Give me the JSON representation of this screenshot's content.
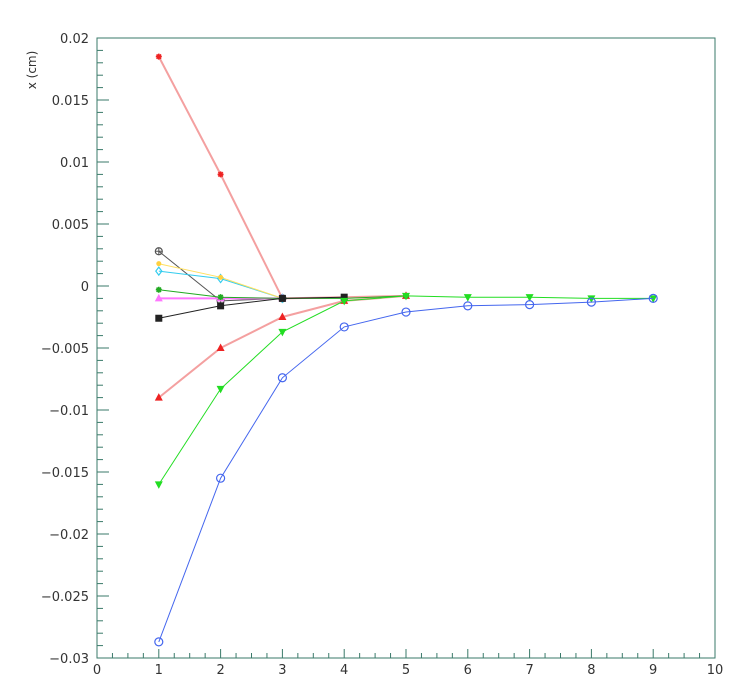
{
  "chart_data": {
    "type": "line",
    "title": "",
    "xlabel": "",
    "ylabel": "x (cm)",
    "xlim": [
      0,
      10
    ],
    "ylim": [
      -0.03,
      0.02
    ],
    "grid": false,
    "legend": "none",
    "x_ticks": [
      0,
      1,
      2,
      3,
      4,
      5,
      6,
      7,
      8,
      9,
      10
    ],
    "x_tick_labels": [
      "0",
      "1",
      "2",
      "3",
      "4",
      "5",
      "6",
      "7",
      "8",
      "9",
      "10"
    ],
    "y_ticks": [
      -0.03,
      -0.025,
      -0.02,
      -0.015,
      -0.01,
      -0.005,
      0,
      0.005,
      0.01,
      0.015,
      0.02
    ],
    "y_tick_labels": [
      "−0.03",
      "−0.025",
      "−0.02",
      "−0.015",
      "−0.01",
      "−0.005",
      "0",
      "0.005",
      "0.01",
      "0.015",
      "0.02"
    ],
    "series": [
      {
        "color": "#f4a0a0",
        "lineWidth": 2,
        "marker": "star",
        "markerColor": "#ee2222",
        "x": [
          1,
          2,
          3,
          4,
          5
        ],
        "y": [
          0.0185,
          0.009,
          -0.001,
          -0.0009,
          -0.0008
        ]
      },
      {
        "color": "#f4a0a0",
        "lineWidth": 2,
        "marker": "triangle-up",
        "markerColor": "#ee2222",
        "x": [
          1,
          2,
          3,
          4,
          5
        ],
        "y": [
          -0.009,
          -0.005,
          -0.0025,
          -0.0012,
          -0.0008
        ]
      },
      {
        "color": "#555555",
        "lineWidth": 1,
        "marker": "open-cross",
        "markerColor": "#555555",
        "x": [
          1,
          2,
          3
        ],
        "y": [
          0.0028,
          -0.0012,
          -0.001
        ]
      },
      {
        "color": "#33ccee",
        "lineWidth": 1,
        "marker": "open-diamond",
        "markerColor": "#33ccee",
        "x": [
          1,
          2,
          3
        ],
        "y": [
          0.0012,
          0.0006,
          -0.001
        ]
      },
      {
        "color": "#ffe060",
        "lineWidth": 1,
        "marker": "dot",
        "markerColor": "#ffd040",
        "x": [
          1,
          2,
          3
        ],
        "y": [
          0.0018,
          0.0007,
          -0.001
        ]
      },
      {
        "color": "#ff77ff",
        "lineWidth": 2,
        "marker": "triangle-up",
        "markerColor": "#ff77ff",
        "x": [
          1,
          2,
          3
        ],
        "y": [
          -0.001,
          -0.001,
          -0.001
        ]
      },
      {
        "color": "#22aa22",
        "lineWidth": 1,
        "marker": "star",
        "markerColor": "#22aa22",
        "x": [
          1,
          2,
          3,
          4,
          5
        ],
        "y": [
          -0.0003,
          -0.0009,
          -0.001,
          -0.001,
          -0.0008
        ]
      },
      {
        "color": "#222222",
        "lineWidth": 1,
        "marker": "square",
        "markerColor": "#222222",
        "x": [
          1,
          2,
          3,
          4
        ],
        "y": [
          -0.0026,
          -0.0016,
          -0.001,
          -0.0009
        ]
      },
      {
        "color": "#22dd22",
        "lineWidth": 1,
        "marker": "triangle-down",
        "markerColor": "#22dd22",
        "x": [
          1,
          2,
          3,
          4,
          5,
          6,
          7,
          8,
          9
        ],
        "y": [
          -0.016,
          -0.0083,
          -0.0037,
          -0.0012,
          -0.0008,
          -0.0009,
          -0.0009,
          -0.001,
          -0.001
        ]
      },
      {
        "color": "#4466ee",
        "lineWidth": 1,
        "marker": "open-circle",
        "markerColor": "#4466ee",
        "x": [
          1,
          2,
          3,
          4,
          5,
          6,
          7,
          8,
          9
        ],
        "y": [
          -0.0287,
          -0.0155,
          -0.0074,
          -0.0033,
          -0.0021,
          -0.0016,
          -0.0015,
          -0.0013,
          -0.001
        ]
      }
    ]
  }
}
